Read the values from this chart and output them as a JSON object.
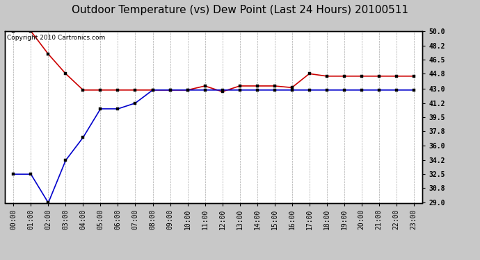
{
  "title": "Outdoor Temperature (vs) Dew Point (Last 24 Hours) 20100511",
  "copyright_text": "Copyright 2010 Cartronics.com",
  "hours": [
    0,
    1,
    2,
    3,
    4,
    5,
    6,
    7,
    8,
    9,
    10,
    11,
    12,
    13,
    14,
    15,
    16,
    17,
    18,
    19,
    20,
    21,
    22,
    23
  ],
  "temp_red": [
    50.0,
    50.0,
    47.2,
    44.8,
    42.8,
    42.8,
    42.8,
    42.8,
    42.8,
    42.8,
    42.8,
    43.3,
    42.6,
    43.3,
    43.3,
    43.3,
    43.1,
    44.8,
    44.5,
    44.5,
    44.5,
    44.5,
    44.5,
    44.5
  ],
  "dew_blue": [
    32.5,
    32.5,
    29.0,
    34.2,
    37.0,
    40.5,
    40.5,
    41.2,
    42.8,
    42.8,
    42.8,
    42.8,
    42.8,
    42.8,
    42.8,
    42.8,
    42.8,
    42.8,
    42.8,
    42.8,
    42.8,
    42.8,
    42.8,
    42.8
  ],
  "ylim_min": 29.0,
  "ylim_max": 50.0,
  "yticks": [
    29.0,
    30.8,
    32.5,
    34.2,
    36.0,
    37.8,
    39.5,
    41.2,
    43.0,
    44.8,
    46.5,
    48.2,
    50.0
  ],
  "ytick_labels": [
    "29.0",
    "30.8",
    "32.5",
    "34.2",
    "36.0",
    "37.8",
    "39.5",
    "41.2",
    "43.0",
    "44.8",
    "46.5",
    "48.2",
    "50.0"
  ],
  "fig_bg_color": "#c8c8c8",
  "plot_bg_color": "#ffffff",
  "grid_color": "#aaaaaa",
  "red_color": "#cc0000",
  "blue_color": "#0000cc",
  "title_fontsize": 11,
  "tick_label_fontsize": 7,
  "copyright_fontsize": 6.5
}
